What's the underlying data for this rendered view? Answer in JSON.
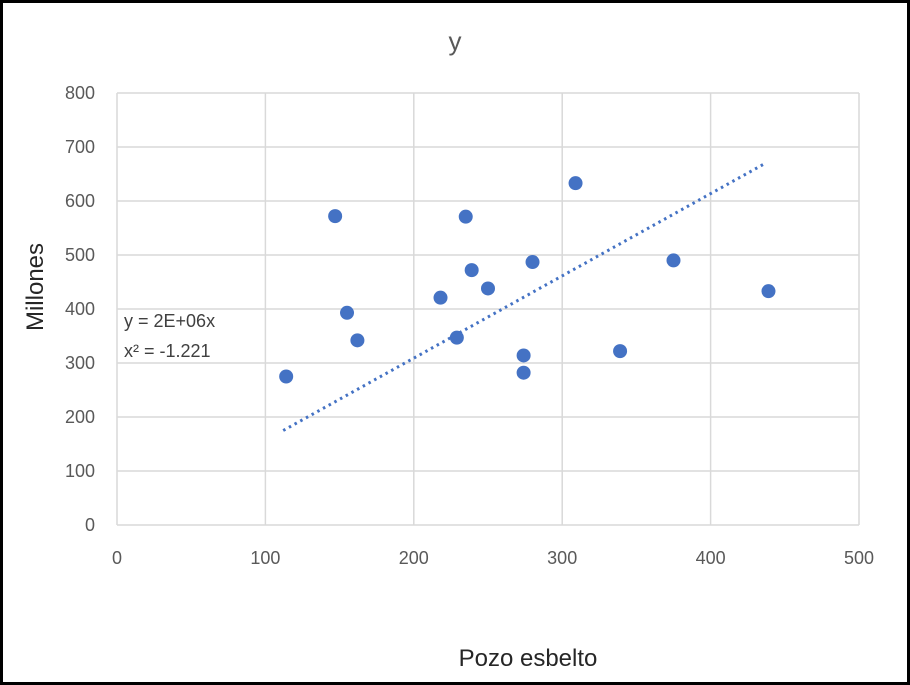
{
  "chart_data": {
    "type": "scatter",
    "title": "y",
    "xlabel": "Pozo esbelto",
    "ylabel": "Millones",
    "xlim": [
      0,
      500
    ],
    "ylim": [
      0,
      800
    ],
    "x_ticks": [
      "0",
      "100",
      "200",
      "300",
      "400",
      "500"
    ],
    "y_ticks": [
      "0",
      "100",
      "200",
      "300",
      "400",
      "500",
      "600",
      "700",
      "800"
    ],
    "grid": true,
    "marker_color": "#4472c4",
    "trendline_color": "#4472c4",
    "points": [
      {
        "x": 114,
        "y": 275
      },
      {
        "x": 147,
        "y": 572
      },
      {
        "x": 155,
        "y": 393
      },
      {
        "x": 162,
        "y": 342
      },
      {
        "x": 218,
        "y": 421
      },
      {
        "x": 229,
        "y": 347
      },
      {
        "x": 235,
        "y": 571
      },
      {
        "x": 239,
        "y": 472
      },
      {
        "x": 250,
        "y": 438
      },
      {
        "x": 274,
        "y": 314
      },
      {
        "x": 274,
        "y": 282
      },
      {
        "x": 280,
        "y": 487
      },
      {
        "x": 309,
        "y": 633
      },
      {
        "x": 339,
        "y": 322
      },
      {
        "x": 375,
        "y": 490
      },
      {
        "x": 439,
        "y": 433
      }
    ],
    "trendline": {
      "style": "dotted",
      "x": [
        112,
        437
      ],
      "y": [
        175,
        670
      ],
      "equation": "y = 2E+06x",
      "r2": "x² = -1.221"
    }
  }
}
